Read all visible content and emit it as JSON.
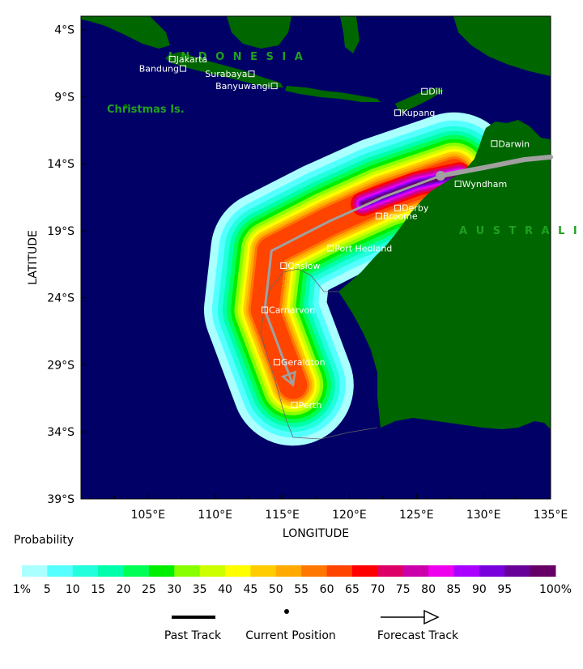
{
  "map": {
    "x_axis_title": "LONGITUDE",
    "y_axis_title": "LATITUDE",
    "lon_ticks": [
      "105°E",
      "110°E",
      "115°E",
      "120°E",
      "125°E",
      "130°E",
      "135°E"
    ],
    "lat_ticks": [
      "4°S",
      "9°S",
      "14°S",
      "19°S",
      "24°S",
      "29°S",
      "34°S",
      "39°S"
    ],
    "lon_range": [
      100,
      135
    ],
    "lat_range": [
      -39,
      -3
    ],
    "regions": [
      {
        "name": "INDONESIA",
        "label": "I N D O N E S I A"
      },
      {
        "name": "Christmas Is.",
        "label": "Christmas Is."
      },
      {
        "name": "AUSTRALIA",
        "label": "A U S T R A L I"
      }
    ],
    "cities": [
      {
        "name": "Jakarta",
        "lon": 106.8,
        "lat": -6.2
      },
      {
        "name": "Bandung",
        "lon": 107.6,
        "lat": -6.9
      },
      {
        "name": "Surabaya",
        "lon": 112.7,
        "lat": -7.3
      },
      {
        "name": "Banyuwangi",
        "lon": 114.4,
        "lat": -8.2
      },
      {
        "name": "Dili",
        "lon": 125.6,
        "lat": -8.6
      },
      {
        "name": "Kupang",
        "lon": 123.6,
        "lat": -10.2
      },
      {
        "name": "Darwin",
        "lon": 130.8,
        "lat": -12.5
      },
      {
        "name": "Wyndham",
        "lon": 128.1,
        "lat": -15.5
      },
      {
        "name": "Derby",
        "lon": 123.6,
        "lat": -17.3
      },
      {
        "name": "Broome",
        "lon": 122.2,
        "lat": -17.9
      },
      {
        "name": "Port Hedland",
        "lon": 118.6,
        "lat": -20.3
      },
      {
        "name": "Onslow",
        "lon": 115.1,
        "lat": -21.6
      },
      {
        "name": "Carnarvon",
        "lon": 113.7,
        "lat": -24.9
      },
      {
        "name": "Geraldton",
        "lon": 114.6,
        "lat": -28.8
      },
      {
        "name": "Perth",
        "lon": 115.9,
        "lat": -32.0
      }
    ],
    "past_track": [
      [
        135,
        -13.5
      ],
      [
        133,
        -13.7
      ],
      [
        130,
        -14.3
      ],
      [
        126.8,
        -14.9
      ]
    ],
    "current_position": [
      126.8,
      -14.9
    ],
    "forecast_track": [
      [
        126.8,
        -14.9
      ],
      [
        122.5,
        -16.5
      ],
      [
        118.5,
        -18.3
      ],
      [
        114.2,
        -20.5
      ],
      [
        113.7,
        -24.9
      ],
      [
        115.8,
        -30.5
      ]
    ],
    "colors": {
      "ocean": "#000066",
      "land": "#006600",
      "track": "#a0a0a0"
    }
  },
  "legend": {
    "title": "Probability",
    "bins": [
      {
        "label": "1%",
        "color": "#aaffff"
      },
      {
        "label": "5",
        "color": "#55ffff"
      },
      {
        "label": "10",
        "color": "#22ffdd"
      },
      {
        "label": "15",
        "color": "#00ffaa"
      },
      {
        "label": "20",
        "color": "#00ff55"
      },
      {
        "label": "25",
        "color": "#00ee00"
      },
      {
        "label": "30",
        "color": "#88ff00"
      },
      {
        "label": "35",
        "color": "#ccff00"
      },
      {
        "label": "40",
        "color": "#ffff00"
      },
      {
        "label": "45",
        "color": "#ffcc00"
      },
      {
        "label": "50",
        "color": "#ffaa00"
      },
      {
        "label": "55",
        "color": "#ff7700"
      },
      {
        "label": "60",
        "color": "#ff4400"
      },
      {
        "label": "65",
        "color": "#ff0000"
      },
      {
        "label": "70",
        "color": "#dd0066"
      },
      {
        "label": "75",
        "color": "#cc00aa"
      },
      {
        "label": "80",
        "color": "#ee00ee"
      },
      {
        "label": "85",
        "color": "#aa00ff"
      },
      {
        "label": "90",
        "color": "#7700dd"
      },
      {
        "label": "95",
        "color": "#660099"
      },
      {
        "label": "100%",
        "color": "#660066"
      }
    ],
    "track_keys": {
      "past": "Past Track",
      "current": "Current Position",
      "forecast": "Forecast Track"
    }
  }
}
